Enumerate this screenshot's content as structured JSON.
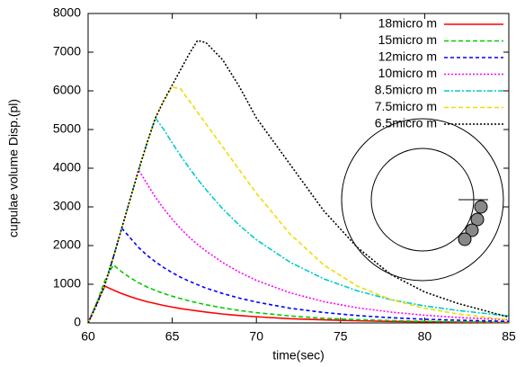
{
  "chart_data": {
    "type": "line",
    "x_label": "time(sec)",
    "y_label": "cupulae volume Disp.(pl)",
    "x": [
      60,
      60.5,
      61,
      61.5,
      62,
      62.5,
      63,
      63.5,
      64,
      64.5,
      65,
      65.5,
      66,
      66.5,
      67,
      68,
      69,
      70,
      72,
      74,
      76,
      78,
      80,
      82,
      85
    ],
    "series": [
      {
        "name": "18micro m",
        "color": "#ff0000",
        "values": [
          0,
          500,
          950,
          850,
          760,
          680,
          610,
          550,
          500,
          450,
          410,
          370,
          340,
          310,
          280,
          230,
          190,
          160,
          110,
          80,
          55,
          40,
          30,
          20,
          10
        ]
      },
      {
        "name": "15micro m",
        "color": "#00cc00",
        "values": [
          0,
          500,
          1100,
          1500,
          1320,
          1170,
          1040,
          930,
          840,
          760,
          690,
          630,
          570,
          520,
          470,
          390,
          320,
          265,
          180,
          120,
          85,
          60,
          40,
          30,
          15
        ]
      },
      {
        "name": "12micro m",
        "color": "#0000ff",
        "values": [
          0,
          480,
          1000,
          1700,
          2450,
          2200,
          1950,
          1750,
          1580,
          1430,
          1300,
          1180,
          1080,
          990,
          900,
          760,
          640,
          540,
          380,
          270,
          190,
          135,
          95,
          70,
          40
        ]
      },
      {
        "name": "10micro m",
        "color": "#ff00ff",
        "values": [
          0,
          470,
          1000,
          1700,
          2450,
          3200,
          3950,
          3600,
          3250,
          2950,
          2680,
          2440,
          2220,
          2030,
          1860,
          1560,
          1310,
          1100,
          780,
          550,
          390,
          280,
          200,
          140,
          80
        ]
      },
      {
        "name": "8.5micro m",
        "color": "#00cccc",
        "values": [
          0,
          460,
          1000,
          1700,
          2450,
          3200,
          3950,
          4650,
          5300,
          5000,
          4650,
          4320,
          4010,
          3720,
          3450,
          2950,
          2520,
          2150,
          1570,
          1140,
          830,
          600,
          440,
          320,
          180
        ]
      },
      {
        "name": "7.5micro m",
        "color": "#eedd00",
        "values": [
          0,
          460,
          1000,
          1700,
          2450,
          3200,
          3950,
          4650,
          5300,
          5750,
          6100,
          6050,
          5750,
          5450,
          5150,
          4550,
          3950,
          3350,
          2300,
          1500,
          950,
          600,
          380,
          230,
          80
        ]
      },
      {
        "name": "6.5micro m",
        "color": "#000000",
        "values": [
          0,
          460,
          1000,
          1700,
          2450,
          3200,
          3950,
          4650,
          5300,
          5750,
          6150,
          6550,
          6950,
          7300,
          7250,
          6800,
          6100,
          5300,
          4100,
          2900,
          1950,
          1250,
          800,
          500,
          150
        ]
      }
    ],
    "xlim": [
      60,
      85
    ],
    "xticks": [
      60,
      65,
      70,
      75,
      80,
      85
    ],
    "ylim": [
      0,
      8000
    ],
    "yticks": [
      0,
      1000,
      2000,
      3000,
      4000,
      5000,
      6000,
      7000,
      8000
    ],
    "grid": false,
    "legend": "upper right"
  }
}
